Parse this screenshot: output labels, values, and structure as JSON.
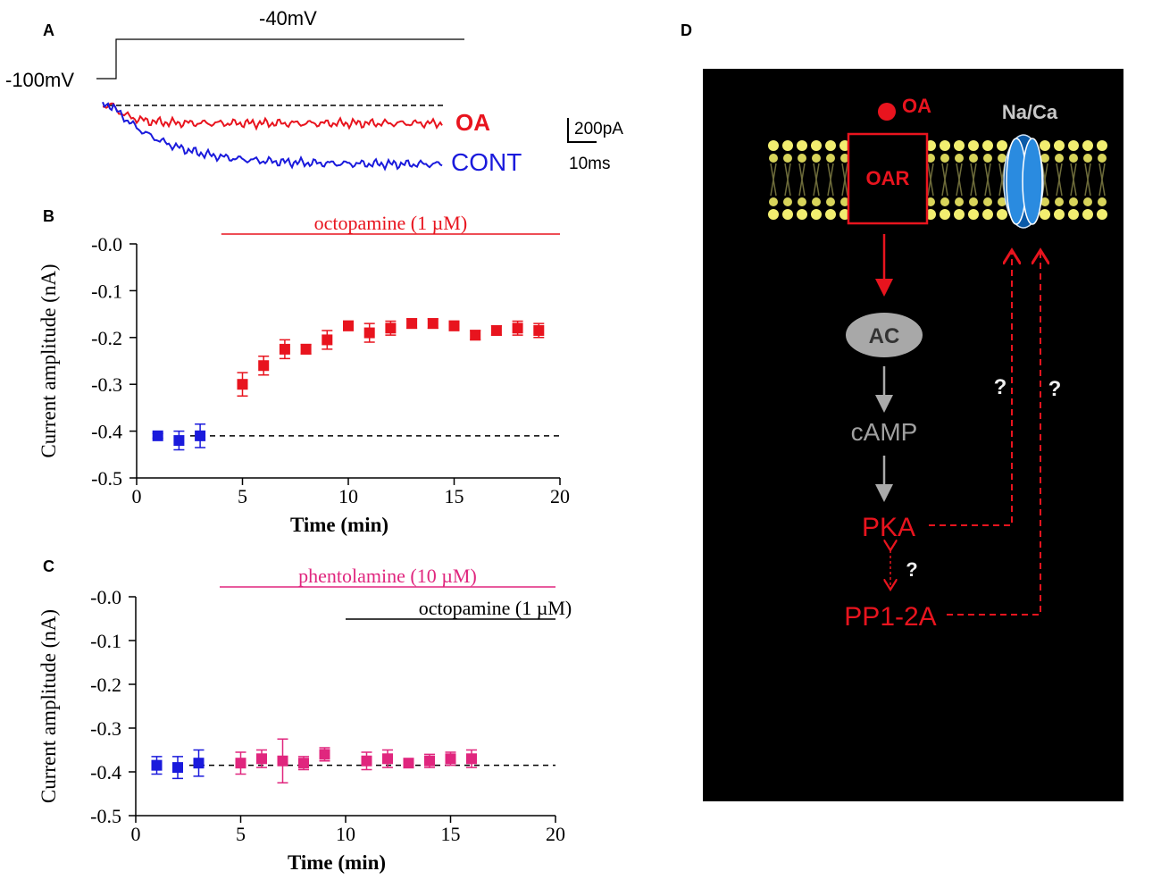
{
  "panel_a": {
    "label": "A",
    "hold": "-100mV",
    "step": "-40mV",
    "trace_oa": "OA",
    "trace_cont": "CONT",
    "scale_current": "200pA",
    "scale_time": "10ms"
  },
  "chart_data": [
    {
      "type": "scatter",
      "label": "B",
      "xlabel": "Time (min)",
      "ylabel": "Current amplitude (nA)",
      "xlim": [
        0,
        20
      ],
      "xticks": [
        0,
        5,
        10,
        15,
        20
      ],
      "ylim": [
        -0.5,
        0
      ],
      "yticks": [
        {
          "value": 0,
          "label": "-0.0"
        },
        -0.1,
        -0.2,
        -0.3,
        -0.4,
        -0.5
      ],
      "series": [
        {
          "color": "#1a1adc",
          "x": [
            1,
            2,
            3
          ],
          "values": [
            -0.41,
            -0.42,
            -0.41
          ],
          "errors": [
            0.005,
            0.02,
            0.025
          ]
        },
        {
          "color": "#e8141e",
          "x": [
            5,
            6,
            7,
            8,
            9,
            10,
            11,
            12,
            13,
            14,
            15,
            16,
            17,
            18,
            19
          ],
          "values": [
            -0.3,
            -0.26,
            -0.225,
            -0.225,
            -0.205,
            -0.175,
            -0.19,
            -0.18,
            -0.17,
            -0.17,
            -0.175,
            -0.195,
            -0.185,
            -0.18,
            -0.185
          ],
          "errors": [
            0.025,
            0.02,
            0.02,
            0.01,
            0.02,
            0.01,
            0.02,
            0.015,
            0.01,
            0.01,
            0.01,
            0.01,
            0.01,
            0.015,
            0.015
          ]
        }
      ],
      "reference_line": -0.41,
      "treatments": [
        {
          "label": "octopamine (1 µM)",
          "x": [
            4,
            20
          ],
          "color": "#e8141e"
        }
      ]
    },
    {
      "type": "scatter",
      "label": "C",
      "xlabel": "Time (min)",
      "ylabel": "Current amplitude (nA)",
      "xlim": [
        0,
        20
      ],
      "xticks": [
        0,
        5,
        10,
        15,
        20
      ],
      "ylim": [
        -0.5,
        0
      ],
      "yticks": [
        {
          "value": 0,
          "label": "-0.0"
        },
        -0.1,
        -0.2,
        -0.3,
        -0.4,
        -0.5
      ],
      "series": [
        {
          "color": "#1a1adc",
          "x": [
            1,
            2,
            3
          ],
          "values": [
            -0.385,
            -0.39,
            -0.38
          ],
          "errors": [
            0.02,
            0.025,
            0.03
          ]
        },
        {
          "color": "#e0267e",
          "x": [
            5,
            6,
            7,
            8,
            9,
            11,
            12,
            13,
            14,
            15,
            16
          ],
          "values": [
            -0.38,
            -0.37,
            -0.375,
            -0.38,
            -0.36,
            -0.375,
            -0.37,
            -0.38,
            -0.375,
            -0.37,
            -0.37
          ],
          "errors": [
            0.025,
            0.02,
            0.05,
            0.015,
            0.015,
            0.02,
            0.02,
            0.01,
            0.015,
            0.015,
            0.02
          ]
        }
      ],
      "reference_line": -0.385,
      "treatments": [
        {
          "label": "phentolamine (10 µM)",
          "x": [
            4,
            20
          ],
          "color": "#e0267e"
        },
        {
          "label": "octopamine (1 µM)",
          "x": [
            10,
            20
          ],
          "color": "#000000"
        }
      ]
    }
  ],
  "diagram": {
    "label": "D",
    "ligand": "OA",
    "channel": "Na/Ca",
    "receptor": "OAR",
    "enzyme": "AC",
    "messenger": "cAMP",
    "kinase": "PKA",
    "phosphatase": "PP1-2A",
    "unknowns": [
      "?",
      "?",
      "?"
    ]
  }
}
